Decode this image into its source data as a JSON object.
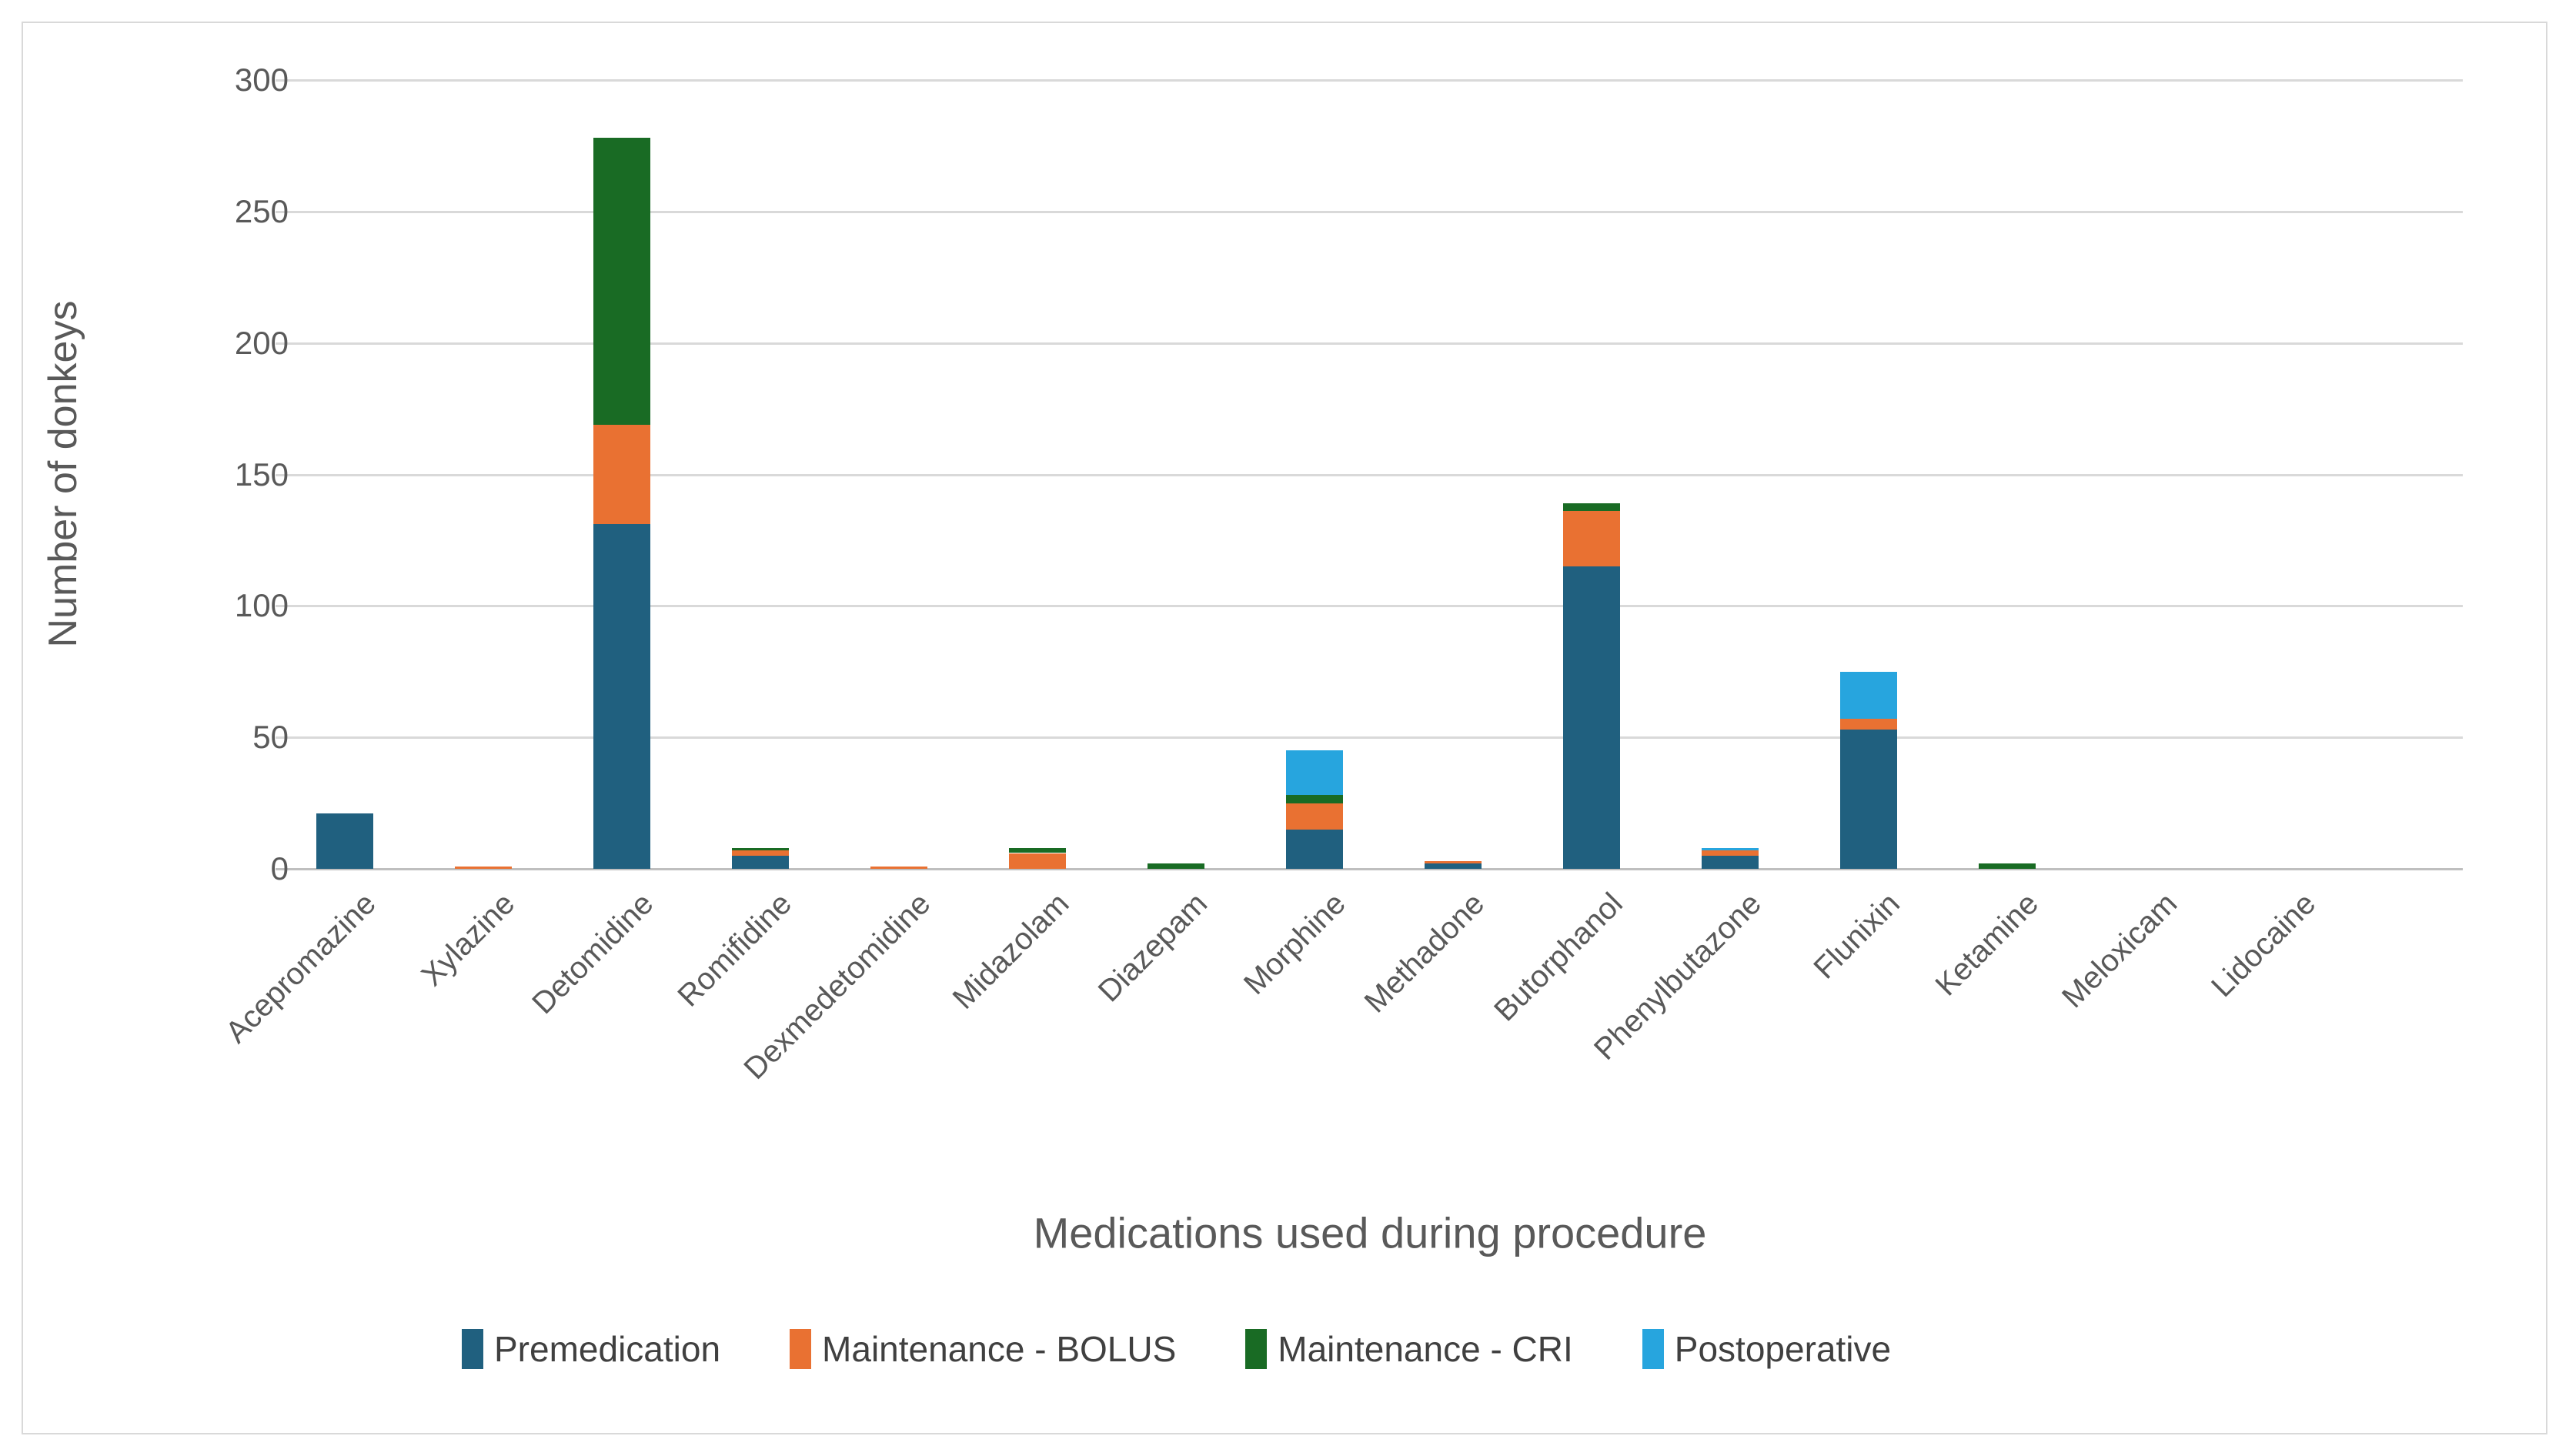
{
  "chart_data": {
    "type": "bar",
    "stacked": true,
    "title": "",
    "xlabel": "Medications used during procedure",
    "ylabel": "Number of donkeys",
    "ylim": [
      0,
      300
    ],
    "ytick_step": 50,
    "yticks": [
      0,
      50,
      100,
      150,
      200,
      250,
      300
    ],
    "grid": "horizontal",
    "legend_position": "bottom",
    "categories": [
      "Acepromazine",
      "Xylazine",
      "Detomidine",
      "Romifidine",
      "Dexmedetomidine",
      "Midazolam",
      "Diazepam",
      "Morphine",
      "Methadone",
      "Butorphanol",
      "Phenylbutazone",
      "Flunixin",
      "Ketamine",
      "Meloxicam",
      "Lidocaine"
    ],
    "series": [
      {
        "name": "Premedication",
        "color": "#20607F",
        "values": [
          21,
          0,
          131,
          5,
          0,
          0,
          0,
          15,
          2,
          115,
          5,
          53,
          0,
          0,
          0
        ]
      },
      {
        "name": "Maintenance - BOLUS",
        "color": "#E97132",
        "values": [
          0,
          1,
          38,
          2,
          1,
          6,
          0,
          10,
          1,
          21,
          2,
          4,
          0,
          0,
          0
        ]
      },
      {
        "name": "Maintenance - CRI",
        "color": "#196B24",
        "values": [
          0,
          0,
          109,
          1,
          0,
          2,
          2,
          3,
          0,
          3,
          0,
          0,
          2,
          0,
          0
        ]
      },
      {
        "name": "Postoperative",
        "color": "#27A5DE",
        "values": [
          0,
          0,
          0,
          0,
          0,
          0,
          0,
          17,
          0,
          0,
          1,
          18,
          0,
          0,
          0
        ]
      }
    ],
    "colors": {
      "gridline": "#d9d9d9",
      "axis_line": "#bfbfbf",
      "tick_text": "#595959",
      "frame_border": "#d9d9d9",
      "background": "#ffffff"
    }
  }
}
